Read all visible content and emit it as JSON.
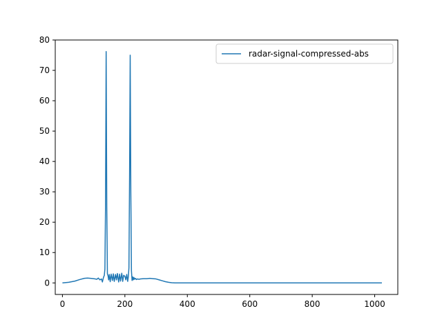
{
  "chart_data": {
    "type": "line",
    "title": "",
    "xlabel": "",
    "ylabel": "",
    "xlim": [
      -23,
      1074
    ],
    "ylim": [
      -3.8,
      80
    ],
    "xticks": [
      0,
      200,
      400,
      600,
      800,
      1000
    ],
    "yticks": [
      0,
      10,
      20,
      30,
      40,
      50,
      60,
      70,
      80
    ],
    "xtick_labels": [
      "0",
      "200",
      "400",
      "600",
      "800",
      "1000"
    ],
    "ytick_labels": [
      "0",
      "10",
      "20",
      "30",
      "40",
      "50",
      "60",
      "70",
      "80"
    ],
    "grid": false,
    "legend_position": "top-right",
    "series": [
      {
        "name": "radar-signal-compressed-abs",
        "color": "#1f77b4",
        "x": [
          0,
          20,
          40,
          55,
          70,
          80,
          90,
          100,
          105,
          110,
          115,
          120,
          125,
          128,
          130,
          132,
          134,
          136,
          138,
          140,
          142,
          144,
          146,
          148,
          150,
          153,
          156,
          160,
          163,
          166,
          170,
          173,
          176,
          180,
          183,
          186,
          190,
          193,
          196,
          200,
          203,
          206,
          209,
          211,
          213,
          215,
          217,
          219,
          221,
          223,
          225,
          227,
          229,
          231,
          234,
          237,
          240,
          245,
          250,
          260,
          270,
          280,
          290,
          300,
          310,
          320,
          330,
          340,
          350,
          360,
          370,
          380,
          400,
          500,
          600,
          700,
          800,
          900,
          1023
        ],
        "y": [
          0.0,
          0.2,
          0.6,
          1.1,
          1.5,
          1.6,
          1.5,
          1.4,
          1.3,
          1.2,
          1.6,
          1.0,
          1.3,
          0.3,
          1.2,
          2.0,
          2.4,
          4.5,
          25.0,
          76.2,
          25.0,
          3.0,
          2.4,
          1.0,
          2.8,
          0.4,
          2.9,
          0.8,
          3.0,
          0.5,
          2.8,
          1.0,
          3.1,
          0.3,
          2.9,
          0.6,
          3.2,
          0.5,
          2.5,
          2.2,
          1.0,
          2.8,
          0.5,
          2.0,
          5.0,
          35.0,
          75.0,
          30.0,
          4.0,
          0.8,
          2.0,
          1.0,
          1.8,
          1.2,
          1.5,
          1.1,
          1.3,
          1.2,
          1.3,
          1.4,
          1.4,
          1.5,
          1.4,
          1.3,
          1.0,
          0.7,
          0.4,
          0.2,
          0.05,
          0.0,
          0.0,
          0.0,
          0.0,
          0.0,
          0.0,
          0.0,
          0.0,
          0.0,
          0.0
        ]
      }
    ]
  }
}
